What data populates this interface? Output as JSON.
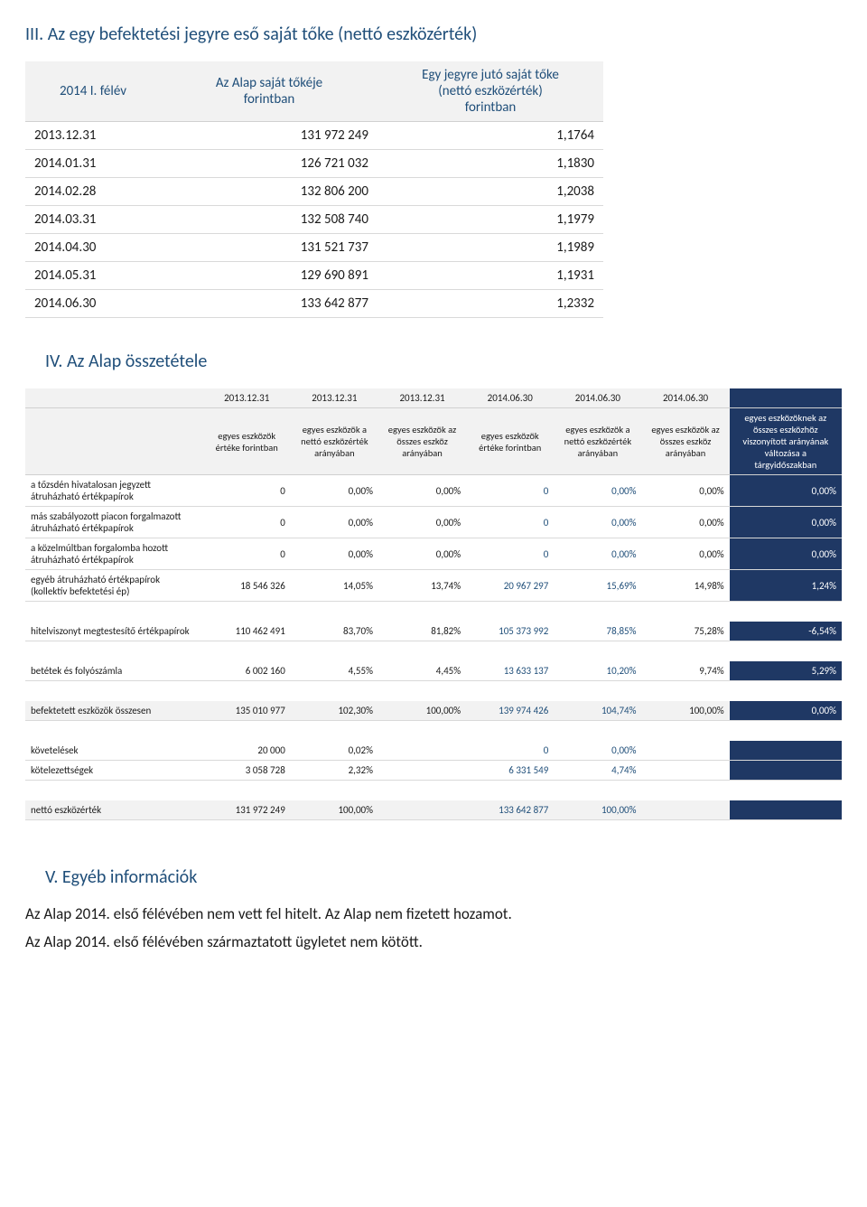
{
  "section3": {
    "title": "III. Az egy befektetési jegyre eső saját tőke (nettó eszközérték)",
    "headers": {
      "col0": "2014 I. félév",
      "col1_line1": "Az Alap saját tőkéje",
      "col1_line2": "forintban",
      "col2_line1": "Egy jegyre jutó saját tőke",
      "col2_line2": "(nettó eszközérték)",
      "col2_line3": "forintban"
    },
    "rows": [
      {
        "date": "2013.12.31",
        "capital": "131 972 249",
        "pershare": "1,1764"
      },
      {
        "date": "2014.01.31",
        "capital": "126 721 032",
        "pershare": "1,1830"
      },
      {
        "date": "2014.02.28",
        "capital": "132 806 200",
        "pershare": "1,2038"
      },
      {
        "date": "2014.03.31",
        "capital": "132 508 740",
        "pershare": "1,1979"
      },
      {
        "date": "2014.04.30",
        "capital": "131 521 737",
        "pershare": "1,1989"
      },
      {
        "date": "2014.05.31",
        "capital": "129 690 891",
        "pershare": "1,1931"
      },
      {
        "date": "2014.06.30",
        "capital": "133 642 877",
        "pershare": "1,2332"
      }
    ]
  },
  "section4": {
    "title": "IV. Az Alap összetétele",
    "date_headers": [
      "2013.12.31",
      "2013.12.31",
      "2013.12.31",
      "2014.06.30",
      "2014.06.30",
      "2014.06.30",
      ""
    ],
    "col_headers": [
      "egyes eszközök értéke forintban",
      "egyes eszközök a nettó eszközérték arányában",
      "egyes eszközök az összes eszköz arányában",
      "egyes eszközök értéke forintban",
      "egyes eszközök a nettó eszközérték arányában",
      "egyes eszközök az összes eszköz arányában",
      "egyes eszközöknek az összes eszközhöz viszonyított arányának változása a tárgyidőszakban"
    ],
    "rows1": [
      {
        "label": "a tőzsdén hivatalosan jegyzett átruházható értékpapírok",
        "v": [
          "0",
          "0,00%",
          "0,00%",
          "0",
          "0,00%",
          "0,00%",
          "0,00%"
        ]
      },
      {
        "label": "más szabályozott piacon forgalmazott átruházható értékpapírok",
        "v": [
          "0",
          "0,00%",
          "0,00%",
          "0",
          "0,00%",
          "0,00%",
          "0,00%"
        ]
      },
      {
        "label": "a közelmúltban forgalomba hozott átruházható értékpapírok",
        "v": [
          "0",
          "0,00%",
          "0,00%",
          "0",
          "0,00%",
          "0,00%",
          "0,00%"
        ]
      },
      {
        "label": "egyéb átruházható értékpapírok (kollektív befektetési ép)",
        "v": [
          "18 546 326",
          "14,05%",
          "13,74%",
          "20 967 297",
          "15,69%",
          "14,98%",
          "1,24%"
        ]
      }
    ],
    "rows2": [
      {
        "label": "hitelviszonyt megtestesítő értékpapírok",
        "v": [
          "110 462 491",
          "83,70%",
          "81,82%",
          "105 373 992",
          "78,85%",
          "75,28%",
          "-6,54%"
        ]
      }
    ],
    "rows3": [
      {
        "label": "betétek és folyószámla",
        "v": [
          "6 002 160",
          "4,55%",
          "4,45%",
          "13 633 137",
          "10,20%",
          "9,74%",
          "5,29%"
        ]
      }
    ],
    "subtotal1": {
      "label": "befektetett eszközök összesen",
      "v": [
        "135 010 977",
        "102,30%",
        "100,00%",
        "139 974 426",
        "104,74%",
        "100,00%",
        "0,00%"
      ]
    },
    "rows4": [
      {
        "label": "követelések",
        "v": [
          "20 000",
          "0,02%",
          "",
          "0",
          "0,00%",
          "",
          ""
        ]
      },
      {
        "label": "kötelezettségek",
        "v": [
          "3 058 728",
          "2,32%",
          "",
          "6 331 549",
          "4,74%",
          "",
          ""
        ]
      }
    ],
    "subtotal2": {
      "label": "nettó eszközérték",
      "v": [
        "131 972 249",
        "100,00%",
        "",
        "133 642 877",
        "100,00%",
        "",
        ""
      ]
    }
  },
  "section5": {
    "title": "V. Egyéb információk",
    "para1": "Az Alap 2014. első félévében nem vett fel hitelt. Az Alap nem fizetett hozamot.",
    "para2": "Az Alap 2014. első félévében származtatott ügyletet nem kötött."
  },
  "styling": {
    "heading_color": "#1f4e79",
    "dark_bg": "#1f3864",
    "header_bg": "#f2f2f2",
    "border_color": "#d9d9d9",
    "blue_text": "#1f4e79",
    "body_fontsize": 13,
    "heading_fontsize": 20,
    "para_fontsize": 17
  }
}
